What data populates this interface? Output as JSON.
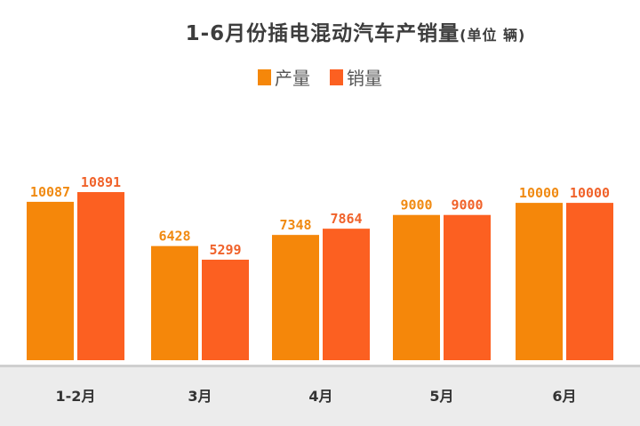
{
  "chart_data": {
    "type": "bar",
    "title": "1-6月份插电混动汽车产销量",
    "unit_note": "(单位  辆)",
    "categories": [
      "1-2月",
      "3月",
      "4月",
      "5月",
      "6月"
    ],
    "series": [
      {
        "name": "产量",
        "color": "#f5870a",
        "label_color": "#f08a12",
        "values": [
          10087,
          6428,
          7348,
          9000,
          10000
        ]
      },
      {
        "name": "销量",
        "color": "#fc6021",
        "label_color": "#f0622a",
        "values": [
          10891,
          5299,
          7864,
          9000,
          10000
        ]
      }
    ],
    "legend": "top-center",
    "grid": false,
    "axis_band_color": "#ececec"
  }
}
